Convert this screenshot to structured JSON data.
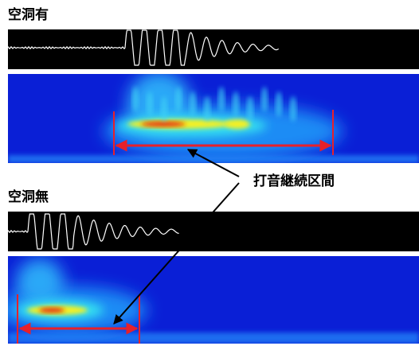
{
  "sections": [
    {
      "label": "空洞有"
    },
    {
      "label": "空洞無"
    }
  ],
  "annotation": "打音継続区間"
}
